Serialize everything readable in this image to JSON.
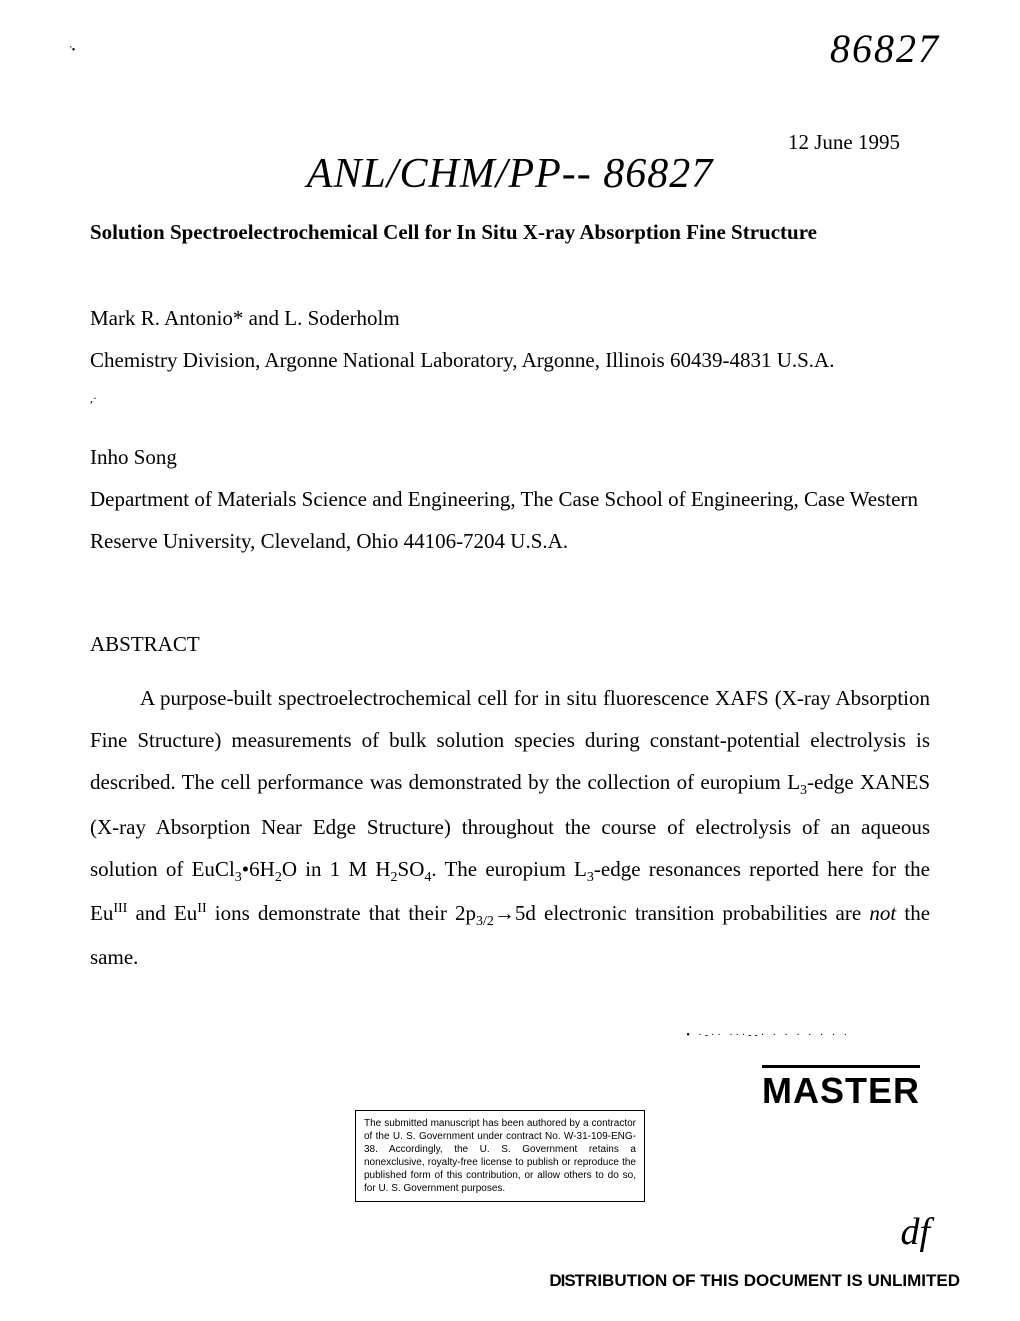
{
  "doc_number_top": "86827",
  "small_mark": "'•",
  "date": "12 June 1995",
  "handwritten_code": "ANL/CHM/PP-- 86827",
  "title": "Solution Spectroelectrochemical Cell for In Situ X-ray Absorption Fine Structure",
  "author1_line1": "Mark R. Antonio* and L. Soderholm",
  "author1_line2": "Chemistry Division, Argonne National Laboratory, Argonne, Illinois 60439-4831 U.S.A.",
  "small_tick": ",·",
  "author2_line1": "Inho Song",
  "author2_line2": "Department of Materials Science and Engineering, The Case School of Engineering, Case Western Reserve University, Cleveland, Ohio 44106-7204 U.S.A.",
  "abstract_header": "ABSTRACT",
  "abstract_p1_part1": "A purpose-built spectroelectrochemical cell for in situ fluorescence XAFS (X-ray Absorption Fine Structure) measurements of bulk solution species during constant-potential electrolysis is described. The cell performance was demonstrated by the collection of europium L",
  "abstract_p1_sub1": "3",
  "abstract_p1_part2": "-edge XANES (X-ray Absorption Near Edge Structure) throughout the course of electrolysis of an aqueous solution of EuCl",
  "abstract_p1_sub2": "3",
  "abstract_p1_part3": "•6H",
  "abstract_p1_sub3": "2",
  "abstract_p1_part4": "O in 1 M H",
  "abstract_p1_sub4": "2",
  "abstract_p1_part5": "SO",
  "abstract_p1_sub5": "4",
  "abstract_p1_part6": ". The europium L",
  "abstract_p1_sub6": "3",
  "abstract_p1_part7": "-edge resonances reported here for the Eu",
  "abstract_p1_sup1": "III",
  "abstract_p1_part8": " and Eu",
  "abstract_p1_sup2": "II",
  "abstract_p1_part9": " ions demonstrate that their 2p",
  "abstract_p1_sub7": "3/2",
  "abstract_p1_part10": "→5d electronic transition probabilities are ",
  "abstract_p1_italic": "not",
  "abstract_p1_part11": " the same.",
  "master": "MASTER",
  "copyright": "The submitted manuscript has been authored by a contractor of the U. S. Government under contract No. W-31-109-ENG-38. Accordingly, the U. S. Government retains a nonexclusive, royalty-free license to publish or reproduce the published form of this contribution, or allow others to do so, for U. S. Government purposes.",
  "signature": "df",
  "distribution_prefix": "DIS",
  "distribution_rest": "TRIBUTION OF THIS DOCUMENT IS UNLIMITED",
  "dots": "• ·-·· ···--· · ·  · ·  · · ·"
}
